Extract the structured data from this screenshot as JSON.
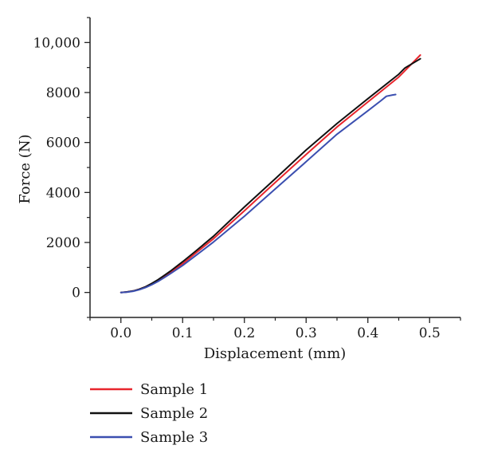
{
  "chart_data": {
    "type": "line",
    "title": "",
    "xlabel": "Displacement (mm)",
    "ylabel": "Force (N)",
    "xlim": [
      -0.05,
      0.55
    ],
    "ylim": [
      -1000,
      11000
    ],
    "x_ticks": [
      0.0,
      0.1,
      0.2,
      0.3,
      0.4,
      0.5
    ],
    "x_tick_labels": [
      "0.0",
      "0.1",
      "0.2",
      "0.3",
      "0.4",
      "0.5"
    ],
    "x_minor_ticks": [
      -0.05,
      0.05,
      0.15,
      0.25,
      0.35,
      0.45,
      0.55
    ],
    "y_ticks": [
      0,
      2000,
      4000,
      6000,
      8000,
      10000
    ],
    "y_tick_labels": [
      "0",
      "2000",
      "4000",
      "6000",
      "8000",
      "10,000"
    ],
    "y_minor_ticks": [
      -1000,
      1000,
      3000,
      5000,
      7000,
      9000,
      11000
    ],
    "grid": false,
    "legend_position": "below",
    "series": [
      {
        "name": "Sample 1",
        "color": "#e8262d",
        "x": [
          0.0,
          0.01,
          0.02,
          0.03,
          0.04,
          0.05,
          0.06,
          0.07,
          0.08,
          0.1,
          0.12,
          0.15,
          0.2,
          0.25,
          0.3,
          0.35,
          0.4,
          0.45,
          0.485
        ],
        "y": [
          0,
          20,
          60,
          130,
          230,
          350,
          490,
          640,
          800,
          1150,
          1550,
          2150,
          3270,
          4400,
          5520,
          6620,
          7620,
          8620,
          9500
        ]
      },
      {
        "name": "Sample 2",
        "color": "#111111",
        "x": [
          0.0,
          0.01,
          0.02,
          0.03,
          0.04,
          0.05,
          0.06,
          0.07,
          0.08,
          0.1,
          0.12,
          0.15,
          0.2,
          0.25,
          0.3,
          0.35,
          0.4,
          0.45,
          0.46,
          0.485
        ],
        "y": [
          0,
          20,
          60,
          130,
          230,
          360,
          510,
          680,
          850,
          1230,
          1630,
          2250,
          3420,
          4550,
          5700,
          6760,
          7750,
          8730,
          8980,
          9350
        ]
      },
      {
        "name": "Sample 3",
        "color": "#3b4fb0",
        "x": [
          0.0,
          0.01,
          0.02,
          0.03,
          0.04,
          0.05,
          0.06,
          0.07,
          0.08,
          0.1,
          0.12,
          0.15,
          0.2,
          0.25,
          0.3,
          0.35,
          0.4,
          0.42,
          0.43,
          0.44,
          0.445
        ],
        "y": [
          0,
          15,
          50,
          110,
          200,
          310,
          440,
          590,
          750,
          1080,
          1450,
          2020,
          3050,
          4140,
          5230,
          6330,
          7270,
          7650,
          7850,
          7900,
          7920
        ]
      }
    ]
  }
}
